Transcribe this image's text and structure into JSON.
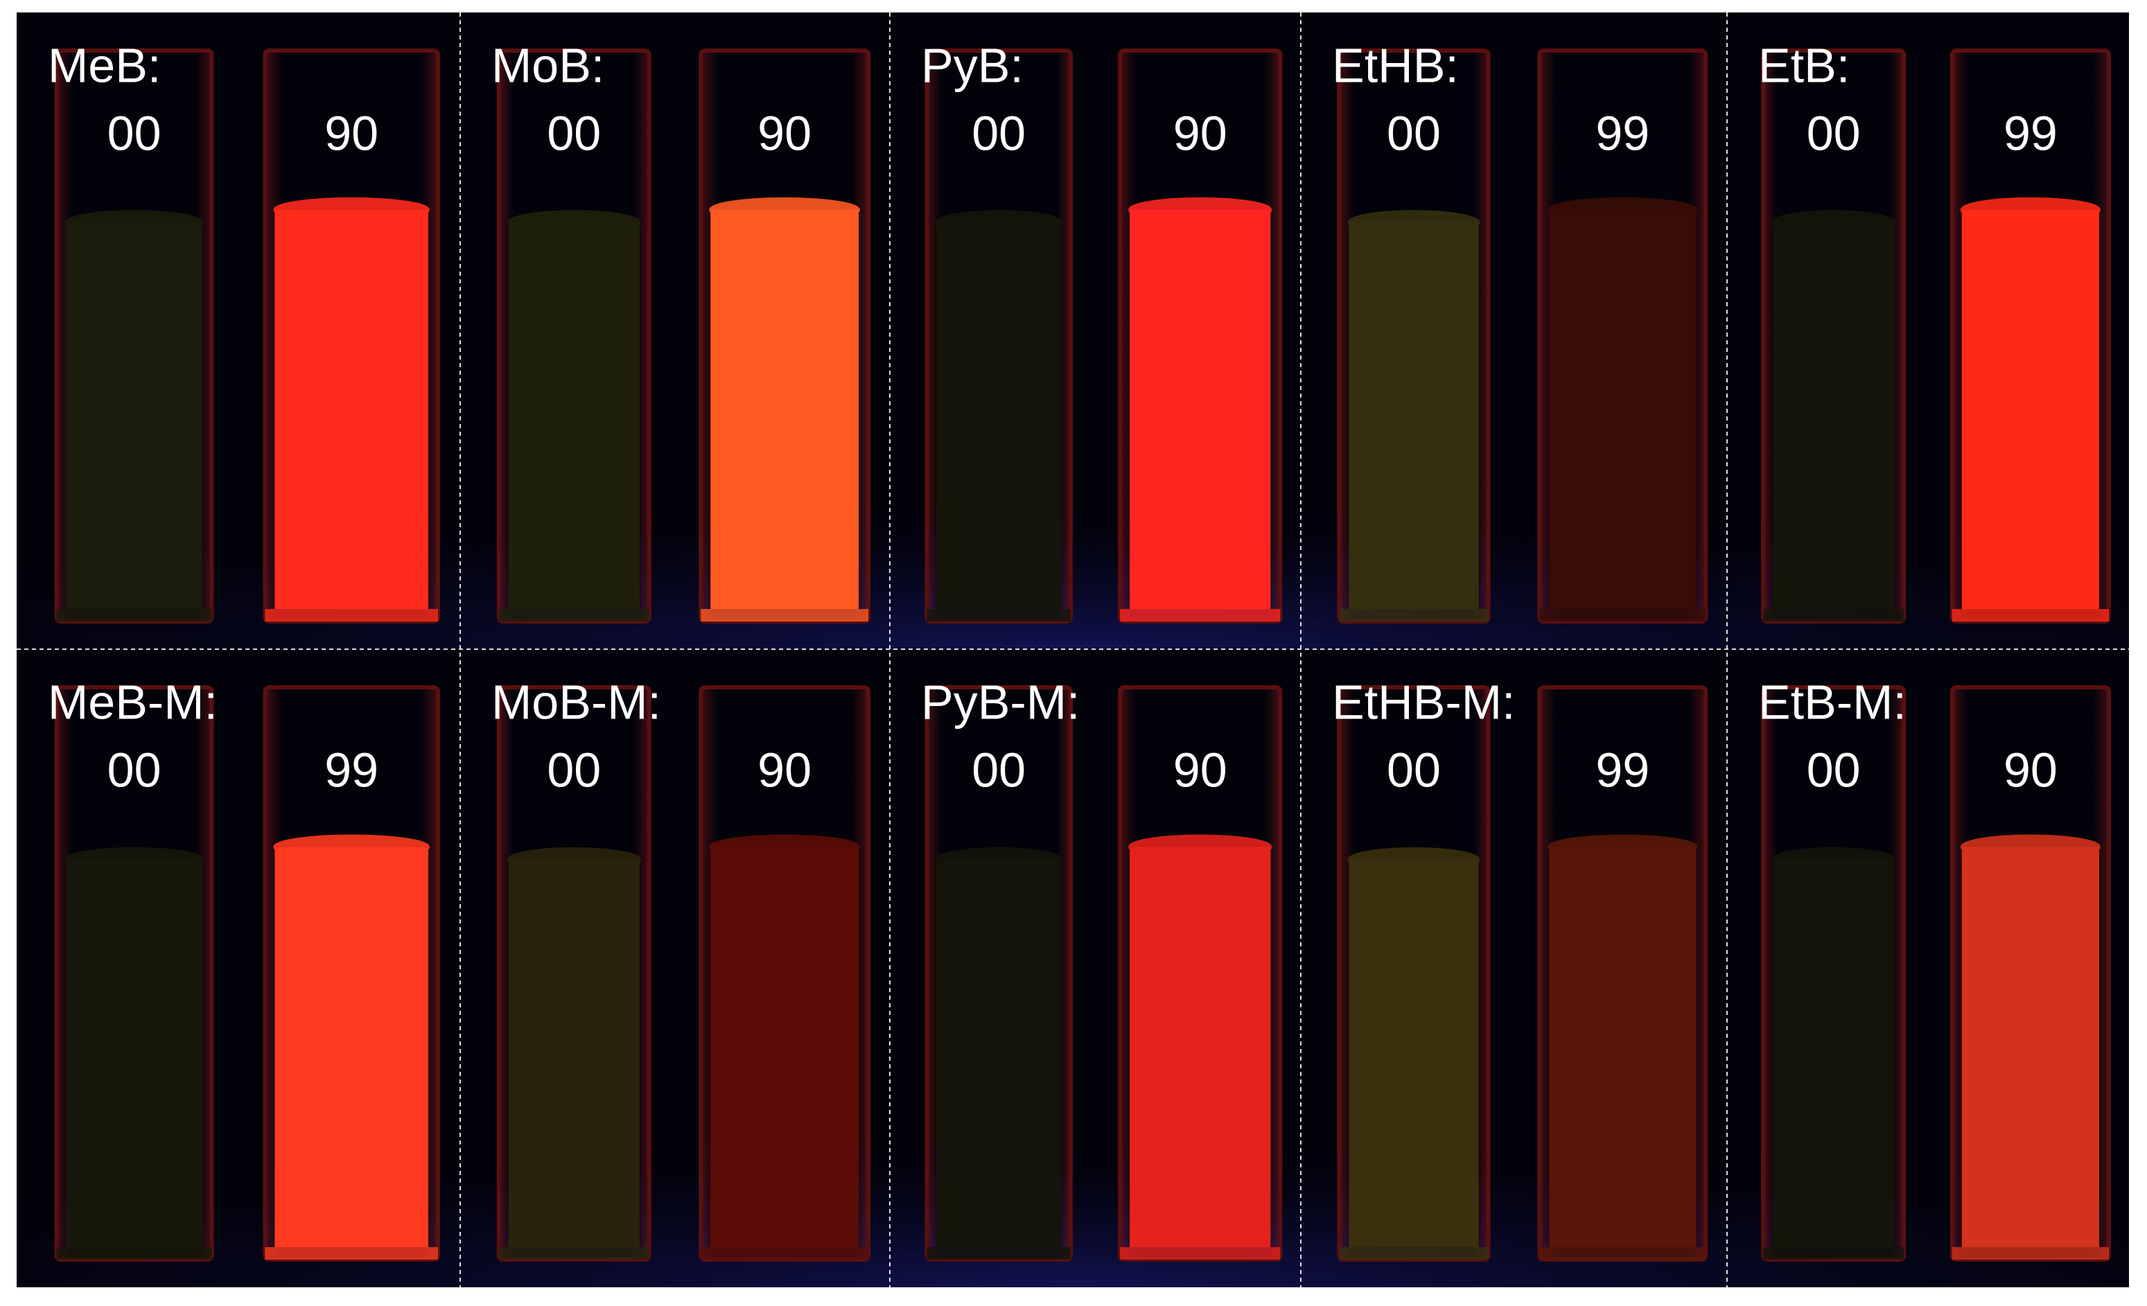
{
  "panels": [
    {
      "label": "MeB:",
      "samples": [
        {
          "label": "00",
          "color": "#1b1c0b"
        },
        {
          "label": "90",
          "color": "#ff2b1c"
        }
      ]
    },
    {
      "label": "MoB:",
      "samples": [
        {
          "label": "00",
          "color": "#1f200c"
        },
        {
          "label": "90",
          "color": "#ff5a22"
        }
      ]
    },
    {
      "label": "PyB:",
      "samples": [
        {
          "label": "00",
          "color": "#15150a"
        },
        {
          "label": "90",
          "color": "#ff2622"
        }
      ]
    },
    {
      "label": "EtHB:",
      "samples": [
        {
          "label": "00",
          "color": "#34300f"
        },
        {
          "label": "99",
          "color": "#3a0c06"
        }
      ]
    },
    {
      "label": "EtB:",
      "samples": [
        {
          "label": "00",
          "color": "#16150a"
        },
        {
          "label": "99",
          "color": "#ff2a16"
        }
      ]
    },
    {
      "label": "MeB-M:",
      "samples": [
        {
          "label": "00",
          "color": "#18180a"
        },
        {
          "label": "99",
          "color": "#ff3a20"
        }
      ]
    },
    {
      "label": "MoB-M:",
      "samples": [
        {
          "label": "00",
          "color": "#28240c"
        },
        {
          "label": "90",
          "color": "#5c0d08"
        }
      ]
    },
    {
      "label": "PyB-M:",
      "samples": [
        {
          "label": "00",
          "color": "#14140a"
        },
        {
          "label": "90",
          "color": "#e6221c"
        }
      ]
    },
    {
      "label": "EtHB-M:",
      "samples": [
        {
          "label": "00",
          "color": "#3a300e"
        },
        {
          "label": "99",
          "color": "#5a1608"
        }
      ]
    },
    {
      "label": "EtB-M:",
      "samples": [
        {
          "label": "00",
          "color": "#15140a"
        },
        {
          "label": "90",
          "color": "#d4321c"
        }
      ]
    }
  ]
}
